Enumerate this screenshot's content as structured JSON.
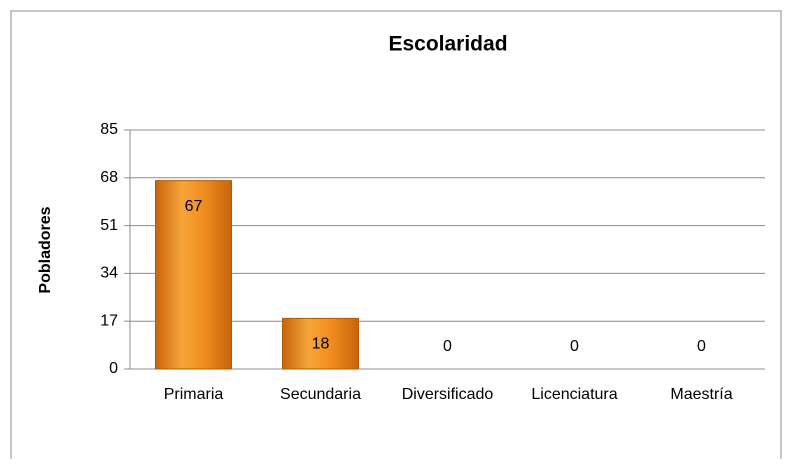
{
  "chart_data": {
    "type": "bar",
    "title": "Escolaridad",
    "y_label": "Pobladores",
    "categories": [
      "Primaria",
      "Secundaria",
      "Diversificado",
      "Licenciatura",
      "Maestría"
    ],
    "values": [
      67,
      18,
      0,
      0,
      0
    ],
    "color": "#f0901e",
    "ylim": [
      0,
      85
    ],
    "yticks": [
      0,
      17,
      34,
      51,
      68,
      85
    ],
    "grid": true
  }
}
